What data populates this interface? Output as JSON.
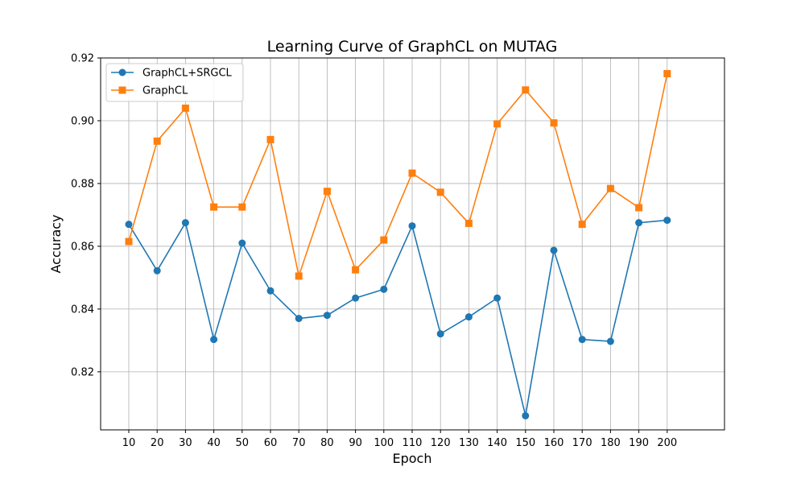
{
  "chart_data": {
    "type": "line",
    "title": "Learning Curve of GraphCL on MUTAG",
    "xlabel": "Epoch",
    "ylabel": "Accuracy",
    "x": [
      10,
      20,
      30,
      40,
      50,
      60,
      70,
      80,
      90,
      100,
      110,
      120,
      130,
      140,
      150,
      160,
      170,
      180,
      190,
      200
    ],
    "xticks": [
      "10",
      "20",
      "30",
      "40",
      "50",
      "60",
      "70",
      "80",
      "90",
      "100",
      "110",
      "120",
      "130",
      "140",
      "150",
      "160",
      "170",
      "180",
      "190",
      "200"
    ],
    "yticks": [
      0.82,
      0.84,
      0.86,
      0.88,
      0.9,
      0.92
    ],
    "ytick_labels": [
      "0.82",
      "0.84",
      "0.86",
      "0.88",
      "0.90",
      "0.92"
    ],
    "ylim": [
      0.8015,
      0.92
    ],
    "grid": true,
    "legend_position": "top-left",
    "series": [
      {
        "name": "GraphCL+SRGCL",
        "color": "#1f77b4",
        "marker": "circle",
        "values": [
          0.867,
          0.8522,
          0.8675,
          0.8303,
          0.861,
          0.8458,
          0.837,
          0.838,
          0.8435,
          0.8463,
          0.8665,
          0.8321,
          0.8375,
          0.8435,
          0.806,
          0.8587,
          0.8303,
          0.8297,
          0.8675,
          0.8683
        ]
      },
      {
        "name": "GraphCL",
        "color": "#ff7f0e",
        "marker": "square",
        "values": [
          0.8615,
          0.8935,
          0.904,
          0.8725,
          0.8725,
          0.894,
          0.8505,
          0.8775,
          0.8525,
          0.862,
          0.8833,
          0.8772,
          0.8673,
          0.899,
          0.9098,
          0.8993,
          0.867,
          0.8784,
          0.8723,
          0.915
        ]
      }
    ]
  }
}
